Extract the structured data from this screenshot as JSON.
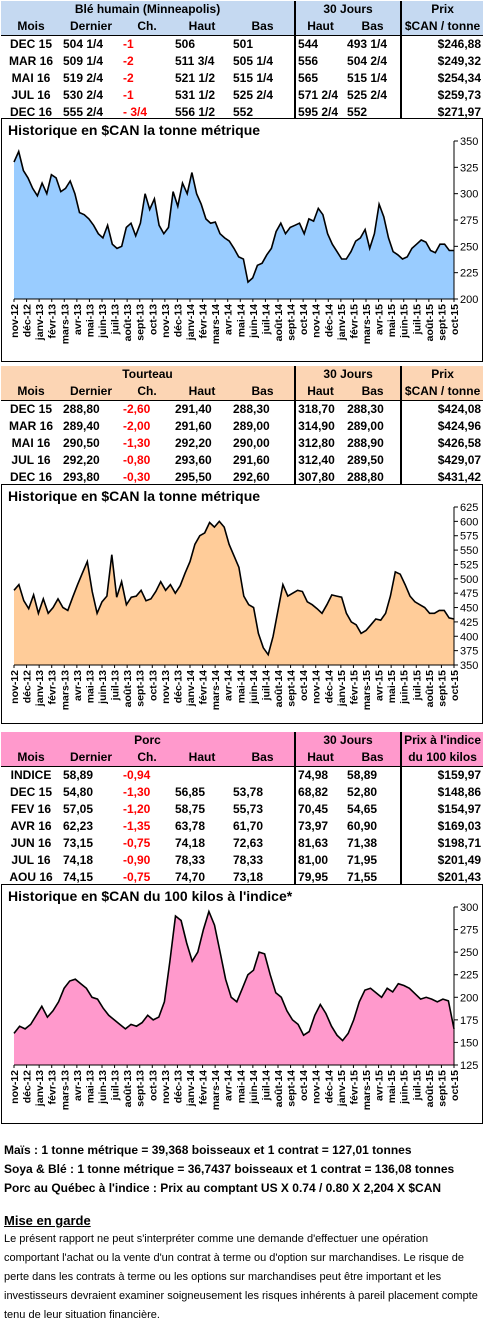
{
  "colors": {
    "ble_header": "#c5d9f1",
    "tourteau_header": "#fcd5b4",
    "porc_header": "#ff99cc",
    "ble_fill": "#99ccff",
    "tourteau_fill": "#ffcc99",
    "porc_fill": "#ff99cc",
    "negative": "#ff0000"
  },
  "tables": [
    {
      "id": "ble",
      "product": "Blé humain (Minneapolis)",
      "jours": "30 Jours",
      "prix1": "Prix",
      "prix2": "$CAN / tonne",
      "cols": [
        "Mois",
        "Dernier",
        "Ch.",
        "Haut",
        "Bas",
        "Haut",
        "Bas"
      ],
      "rows": [
        [
          "DEC 15",
          "504 1/4",
          "-1",
          "506",
          "501",
          "544",
          "493 1/4",
          "$246,88"
        ],
        [
          "MAR 16",
          "509 1/4",
          "-2",
          "511 3/4",
          "505 1/4",
          "556",
          "504 2/4",
          "$249,32"
        ],
        [
          "MAI 16",
          "519 2/4",
          "-2",
          "521 1/2",
          "515 1/4",
          "565",
          "515 1/4",
          "$254,34"
        ],
        [
          "JUL 16",
          "530 2/4",
          "-1",
          "531 1/2",
          "525 2/4",
          "571 2/4",
          "525 2/4",
          "$259,73"
        ],
        [
          "DEC 16",
          "555 2/4",
          "- 3/4",
          "556 1/2",
          "552",
          "595 2/4",
          "552",
          "$271,97"
        ]
      ]
    },
    {
      "id": "tourteau",
      "product": "Tourteau",
      "jours": "30 Jours",
      "prix1": "Prix",
      "prix2": "$CAN / tonne",
      "cols": [
        "Mois",
        "Dernier",
        "Ch.",
        "Haut",
        "Bas",
        "Haut",
        "Bas"
      ],
      "rows": [
        [
          "DEC 15",
          "288,80",
          "-2,60",
          "291,40",
          "288,30",
          "318,70",
          "288,30",
          "$424,08"
        ],
        [
          "MAR 16",
          "289,40",
          "-2,00",
          "291,60",
          "289,00",
          "314,90",
          "289,00",
          "$424,96"
        ],
        [
          "MAI 16",
          "290,50",
          "-1,30",
          "292,20",
          "290,00",
          "312,80",
          "288,90",
          "$426,58"
        ],
        [
          "JUL 16",
          "292,20",
          "-0,80",
          "293,60",
          "291,60",
          "312,40",
          "289,50",
          "$429,07"
        ],
        [
          "DEC 16",
          "293,80",
          "-0,30",
          "295,50",
          "292,60",
          "307,80",
          "288,80",
          "$431,42"
        ]
      ]
    },
    {
      "id": "porc",
      "product": "Porc",
      "jours": "30 Jours",
      "prix1": "Prix à l'indice",
      "prix2": "du 100 kilos",
      "cols": [
        "Mois",
        "Dernier",
        "Ch.",
        "Haut",
        "Bas",
        "Haut",
        "Bas"
      ],
      "rows": [
        [
          "INDICE",
          "58,89",
          "-0,94",
          "",
          "",
          "74,98",
          "58,89",
          "$159,97"
        ],
        [
          "DEC 15",
          "54,80",
          "-1,30",
          "56,85",
          "53,78",
          "68,82",
          "52,80",
          "$148,86"
        ],
        [
          "FEV 16",
          "57,05",
          "-1,20",
          "58,75",
          "55,73",
          "70,45",
          "54,65",
          "$154,97"
        ],
        [
          "AVR 16",
          "62,23",
          "-1,35",
          "63,78",
          "61,70",
          "73,97",
          "60,90",
          "$169,03"
        ],
        [
          "JUN 16",
          "73,15",
          "-0,75",
          "74,18",
          "72,63",
          "81,63",
          "71,38",
          "$198,71"
        ],
        [
          "JUL 16",
          "74,18",
          "-0,90",
          "78,33",
          "78,33",
          "81,00",
          "71,95",
          "$201,49"
        ],
        [
          "AOU 16",
          "74,15",
          "-0,75",
          "74,70",
          "73,18",
          "79,95",
          "71,55",
          "$201,43"
        ]
      ]
    }
  ],
  "months": [
    "nov-12",
    "déc-12",
    "janv-13",
    "févr-13",
    "mars-13",
    "avr-13",
    "mai-13",
    "juin-13",
    "juil-13",
    "août-13",
    "sept-13",
    "oct-13",
    "nov-13",
    "déc-13",
    "janv-14",
    "févr-14",
    "mars-14",
    "avr-14",
    "mai-14",
    "juin-14",
    "juil-14",
    "août-14",
    "sept-14",
    "oct-14",
    "nov-14",
    "déc-14",
    "janv-15",
    "févr-15",
    "mars-15",
    "avr-15",
    "mai-15",
    "juin-15",
    "juil-15",
    "août-15",
    "sept-15",
    "oct-15"
  ],
  "chart_data": [
    {
      "type": "area",
      "title": "Historique en $CAN la tonne métrique",
      "ylim": [
        200,
        350
      ],
      "yticks": [
        200,
        225,
        250,
        275,
        300,
        325,
        350
      ],
      "x_start": "nov-12",
      "x_end": "oct-15",
      "values": [
        330,
        340,
        322,
        315,
        305,
        298,
        310,
        300,
        318,
        315,
        302,
        305,
        312,
        300,
        282,
        280,
        276,
        270,
        262,
        258,
        270,
        252,
        248,
        250,
        268,
        272,
        260,
        272,
        300,
        285,
        295,
        270,
        262,
        268,
        302,
        288,
        310,
        300,
        320,
        300,
        290,
        276,
        272,
        273,
        262,
        258,
        255,
        248,
        240,
        238,
        216,
        220,
        232,
        234,
        242,
        248,
        264,
        272,
        262,
        268,
        270,
        272,
        262,
        276,
        274,
        286,
        280,
        262,
        252,
        245,
        238,
        238,
        245,
        255,
        258,
        266,
        248,
        262,
        290,
        278,
        258,
        245,
        242,
        238,
        240,
        248,
        252,
        256,
        254,
        246,
        244,
        252,
        252,
        246,
        246
      ],
      "fill_color": "#99ccff"
    },
    {
      "type": "area",
      "title": "Historique en $CAN la tonne métrique",
      "ylim": [
        350,
        625
      ],
      "yticks": [
        350,
        375,
        400,
        425,
        450,
        475,
        500,
        525,
        550,
        575,
        600,
        625
      ],
      "x_start": "nov-12",
      "x_end": "oct-15",
      "values": [
        480,
        490,
        462,
        448,
        472,
        440,
        465,
        440,
        450,
        465,
        450,
        445,
        468,
        490,
        510,
        530,
        478,
        440,
        460,
        470,
        542,
        468,
        495,
        455,
        468,
        470,
        480,
        462,
        465,
        478,
        495,
        480,
        490,
        475,
        488,
        510,
        530,
        560,
        575,
        580,
        598,
        590,
        600,
        590,
        560,
        540,
        520,
        470,
        455,
        450,
        405,
        380,
        368,
        400,
        445,
        490,
        470,
        475,
        480,
        478,
        460,
        455,
        448,
        440,
        455,
        472,
        470,
        468,
        440,
        425,
        420,
        405,
        410,
        420,
        430,
        428,
        440,
        470,
        512,
        508,
        490,
        470,
        460,
        455,
        450,
        440,
        440,
        445,
        445,
        432,
        430
      ],
      "fill_color": "#ffcc99"
    },
    {
      "type": "area",
      "title": "Historique en $CAN du 100 kilos à l'indice*",
      "ylim": [
        125,
        300
      ],
      "yticks": [
        125,
        150,
        175,
        200,
        225,
        250,
        275,
        300
      ],
      "x_start": "nov-12",
      "x_end": "oct-15",
      "values": [
        160,
        168,
        165,
        170,
        180,
        190,
        178,
        185,
        195,
        210,
        218,
        220,
        215,
        210,
        200,
        198,
        188,
        180,
        175,
        170,
        165,
        170,
        168,
        172,
        180,
        175,
        178,
        195,
        240,
        290,
        285,
        260,
        240,
        250,
        275,
        295,
        280,
        250,
        220,
        200,
        195,
        210,
        225,
        230,
        250,
        248,
        225,
        205,
        200,
        185,
        175,
        170,
        158,
        162,
        180,
        192,
        182,
        168,
        158,
        152,
        160,
        175,
        195,
        208,
        210,
        205,
        200,
        210,
        206,
        215,
        213,
        210,
        204,
        198,
        200,
        198,
        195,
        198,
        196,
        165
      ],
      "fill_color": "#ff99cc"
    }
  ],
  "notes": [
    "Maïs : 1 tonne métrique = 39,368 boisseaux et 1 contrat = 127,01 tonnes",
    "Soya & Blé : 1 tonne métrique = 36,7437 boisseaux et 1 contrat = 136,08 tonnes",
    "Porc au Québec à l'indice : Prix au comptant US X 0.74 / 0.80 X 2,204 X $CAN"
  ],
  "warning": {
    "title": "Mise en garde",
    "text": "Le présent rapport ne peut s'interpréter comme une demande d'effectuer une opération comportant l'achat ou la vente d'un contrat à terme ou d'option sur marchandises. Le risque de perte dans les contrats à terme ou les options sur marchandises peut être important et les investisseurs devraient examiner soigneusement les risques inhérents à pareil placement compte tenu de leur situation financière."
  }
}
